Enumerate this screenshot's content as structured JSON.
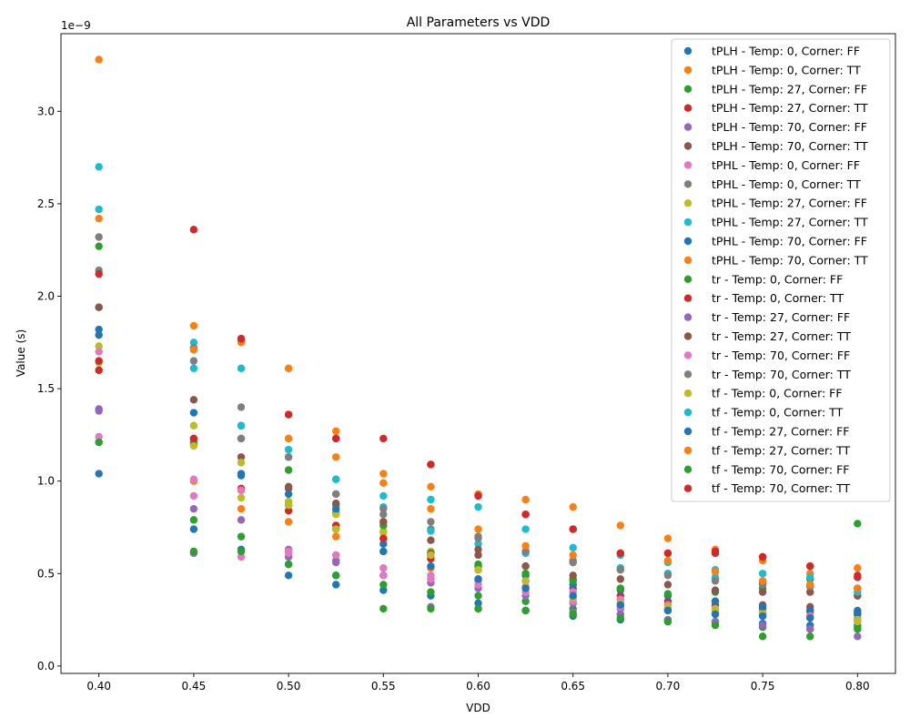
{
  "chart_data": {
    "type": "scatter",
    "title": "All Parameters vs VDD",
    "xlabel": "VDD",
    "ylabel": "Value (s)",
    "y_offset_label": "1e−9",
    "xlim": [
      0.38,
      0.82
    ],
    "ylim": [
      -0.04,
      3.42
    ],
    "x_ticks": [
      0.4,
      0.45,
      0.5,
      0.55,
      0.6,
      0.65,
      0.7,
      0.75,
      0.8
    ],
    "x_tick_labels": [
      "0.40",
      "0.45",
      "0.50",
      "0.55",
      "0.60",
      "0.65",
      "0.70",
      "0.75",
      "0.80"
    ],
    "y_ticks": [
      0.0,
      0.5,
      1.0,
      1.5,
      2.0,
      2.5,
      3.0
    ],
    "y_tick_labels": [
      "0.0",
      "0.5",
      "1.0",
      "1.5",
      "2.0",
      "2.5",
      "3.0"
    ],
    "grid": false,
    "legend_position": "top-right",
    "x": [
      0.4,
      0.45,
      0.475,
      0.5,
      0.525,
      0.55,
      0.575,
      0.6,
      0.625,
      0.65,
      0.675,
      0.7,
      0.725,
      0.75,
      0.775,
      0.8
    ],
    "series": [
      {
        "name": "tPLH - Temp: 0, Corner: FF",
        "color": "#1f77b4",
        "fit": "dashed",
        "values": [
          1.04,
          0.74,
          0.63,
          0.49,
          0.44,
          0.41,
          0.38,
          0.34,
          0.3,
          0.27,
          0.25,
          0.24,
          0.24,
          0.23,
          0.22,
          0.22
        ]
      },
      {
        "name": "tPLH - Temp: 0, Corner: TT",
        "color": "#ff7f0e",
        "fit": "solid",
        "values": [
          1.6,
          1.0,
          0.85,
          0.78,
          0.7,
          0.62,
          0.53,
          0.47,
          0.42,
          0.37,
          0.34,
          0.31,
          0.3,
          0.29,
          0.29,
          0.28
        ]
      },
      {
        "name": "tPLH - Temp: 27, Corner: FF",
        "color": "#2ca02c",
        "fit": "dashed",
        "values": [
          1.21,
          0.79,
          0.7,
          0.55,
          0.49,
          0.44,
          0.4,
          0.38,
          0.35,
          0.31,
          0.28,
          0.25,
          0.23,
          0.21,
          0.2,
          0.21
        ]
      },
      {
        "name": "tPLH - Temp: 27, Corner: TT",
        "color": "#d62728",
        "fit": "solid",
        "values": [
          1.6,
          1.2,
          0.96,
          0.84,
          0.76,
          0.69,
          0.58,
          0.52,
          0.46,
          0.42,
          0.38,
          0.35,
          0.33,
          0.31,
          0.3,
          0.29
        ]
      },
      {
        "name": "tPLH - Temp: 70, Corner: FF",
        "color": "#9467bd",
        "fit": "dashed",
        "values": [
          1.39,
          0.85,
          0.79,
          0.63,
          0.56,
          0.49,
          0.45,
          0.42,
          0.38,
          0.34,
          0.31,
          0.3,
          0.29,
          0.28,
          0.26,
          0.25
        ]
      },
      {
        "name": "tPLH - Temp: 70, Corner: TT",
        "color": "#8c564b",
        "fit": "solid",
        "values": [
          1.94,
          1.44,
          1.13,
          0.96,
          0.83,
          0.78,
          0.68,
          0.6,
          0.54,
          0.47,
          0.42,
          0.38,
          0.35,
          0.33,
          0.32,
          0.38
        ]
      },
      {
        "name": "tPHL - Temp: 0, Corner: FF",
        "color": "#e377c2",
        "fit": "dashed",
        "values": [
          1.24,
          0.92,
          0.59,
          0.62,
          0.6,
          0.53,
          0.47,
          0.44,
          0.4,
          0.35,
          0.32,
          0.3,
          0.28,
          0.27,
          0.26,
          0.26
        ]
      },
      {
        "name": "tPHL - Temp: 0, Corner: TT",
        "color": "#7f7f7f",
        "fit": "solid",
        "values": [
          2.14,
          1.65,
          1.4,
          1.13,
          0.93,
          0.82,
          0.74,
          0.7,
          0.62,
          0.57,
          0.53,
          0.5,
          0.47,
          0.45,
          0.43,
          0.42
        ]
      },
      {
        "name": "tPHL - Temp: 27, Corner: FF",
        "color": "#bcbd22",
        "fit": "dashed",
        "values": [
          1.73,
          1.3,
          1.1,
          0.89,
          0.82,
          0.73,
          0.62,
          0.54,
          0.46,
          0.4,
          0.36,
          0.33,
          0.31,
          0.29,
          0.27,
          0.24
        ]
      },
      {
        "name": "tPHL - Temp: 27, Corner: TT",
        "color": "#17becf",
        "fit": "solid",
        "values": [
          2.7,
          1.75,
          1.61,
          1.23,
          1.01,
          0.86,
          0.73,
          0.66,
          0.61,
          0.56,
          0.53,
          0.5,
          0.48,
          0.46,
          0.44,
          0.42
        ]
      },
      {
        "name": "tPHL - Temp: 70, Corner: FF",
        "color": "#1f77b4",
        "fit": "dashed",
        "values": [
          1.82,
          1.37,
          1.04,
          0.87,
          0.74,
          0.66,
          0.6,
          0.54,
          0.49,
          0.44,
          0.41,
          0.38,
          0.35,
          0.32,
          0.3,
          0.28
        ]
      },
      {
        "name": "tPHL - Temp: 70, Corner: TT",
        "color": "#ff7f0e",
        "fit": "solid",
        "values": [
          3.28,
          1.84,
          1.76,
          1.61,
          1.27,
          1.04,
          0.97,
          0.93,
          0.9,
          0.86,
          0.76,
          0.69,
          0.63,
          0.57,
          0.5,
          0.53
        ]
      },
      {
        "name": "tr - Temp: 0, Corner: FF",
        "color": "#2ca02c",
        "fit": "dashed",
        "values": [
          2.27,
          1.21,
          1.23,
          1.06,
          0.87,
          0.76,
          0.61,
          0.55,
          0.5,
          0.46,
          0.42,
          0.39,
          0.4,
          0.42,
          0.47,
          0.77
        ]
      },
      {
        "name": "tr - Temp: 0, Corner: TT",
        "color": "#d62728",
        "fit": "solid",
        "values": [
          2.12,
          2.36,
          1.77,
          1.36,
          1.23,
          1.23,
          1.09,
          0.92,
          0.82,
          0.74,
          0.61,
          0.61,
          0.61,
          0.59,
          0.54,
          0.48
        ]
      },
      {
        "name": "tr - Temp: 27, Corner: FF",
        "color": "#9467bd",
        "fit": "dashed",
        "values": [
          1.38,
          0.61,
          0.62,
          0.59,
          0.57,
          0.49,
          0.32,
          0.31,
          0.3,
          0.29,
          0.28,
          0.25,
          0.24,
          0.22,
          0.2,
          0.16
        ]
      },
      {
        "name": "tr - Temp: 27, Corner: TT",
        "color": "#8c564b",
        "fit": "solid",
        "values": [
          1.94,
          1.72,
          1.3,
          0.97,
          0.88,
          0.78,
          0.61,
          0.63,
          0.54,
          0.49,
          0.47,
          0.44,
          0.41,
          0.4,
          0.4,
          0.38
        ]
      },
      {
        "name": "tr - Temp: 70, Corner: FF",
        "color": "#e377c2",
        "fit": "dashed",
        "values": [
          1.7,
          1.01,
          0.95,
          0.61,
          0.6,
          0.49,
          0.49,
          0.46,
          0.43,
          0.4,
          0.36,
          0.33,
          0.3,
          0.28,
          0.27,
          0.25
        ]
      },
      {
        "name": "tr - Temp: 70, Corner: TT",
        "color": "#7f7f7f",
        "fit": "solid",
        "values": [
          2.32,
          1.72,
          1.23,
          1.13,
          0.93,
          0.85,
          0.78,
          0.69,
          0.62,
          0.56,
          0.52,
          0.49,
          0.46,
          0.44,
          0.43,
          0.42
        ]
      },
      {
        "name": "tf - Temp: 0, Corner: FF",
        "color": "#bcbd22",
        "fit": "dashed",
        "values": [
          1.64,
          1.19,
          0.91,
          0.87,
          0.74,
          0.72,
          0.6,
          0.52,
          0.46,
          0.37,
          0.34,
          0.32,
          0.3,
          0.28,
          0.26,
          0.25
        ]
      },
      {
        "name": "tf - Temp: 0, Corner: TT",
        "color": "#17becf",
        "fit": "solid",
        "values": [
          2.47,
          1.61,
          1.3,
          1.17,
          1.01,
          0.92,
          0.9,
          0.86,
          0.74,
          0.64,
          0.6,
          0.56,
          0.52,
          0.5,
          0.48,
          0.4
        ]
      },
      {
        "name": "tf - Temp: 27, Corner: FF",
        "color": "#1f77b4",
        "fit": "dashed",
        "values": [
          1.79,
          1.23,
          1.03,
          0.93,
          0.85,
          0.62,
          0.54,
          0.47,
          0.42,
          0.38,
          0.33,
          0.3,
          0.28,
          0.27,
          0.26,
          0.3
        ]
      },
      {
        "name": "tf - Temp: 27, Corner: TT",
        "color": "#ff7f0e",
        "fit": "solid",
        "values": [
          2.42,
          1.71,
          1.75,
          1.23,
          1.13,
          0.99,
          0.85,
          0.74,
          0.65,
          0.6,
          0.61,
          0.57,
          0.51,
          0.46,
          0.44,
          0.42
        ]
      },
      {
        "name": "tf - Temp: 70, Corner: FF",
        "color": "#2ca02c",
        "fit": "dashed",
        "values": [
          1.21,
          0.62,
          0.62,
          0.55,
          0.49,
          0.31,
          0.31,
          0.31,
          0.3,
          0.28,
          0.26,
          0.24,
          0.22,
          0.16,
          0.16,
          0.2
        ]
      },
      {
        "name": "tf - Temp: 70, Corner: TT",
        "color": "#d62728",
        "fit": "solid",
        "values": [
          1.65,
          1.23,
          1.77,
          1.36,
          1.23,
          0.69,
          1.09,
          0.92,
          0.82,
          0.74,
          0.61,
          0.61,
          0.62,
          0.59,
          0.54,
          0.49
        ]
      }
    ]
  }
}
